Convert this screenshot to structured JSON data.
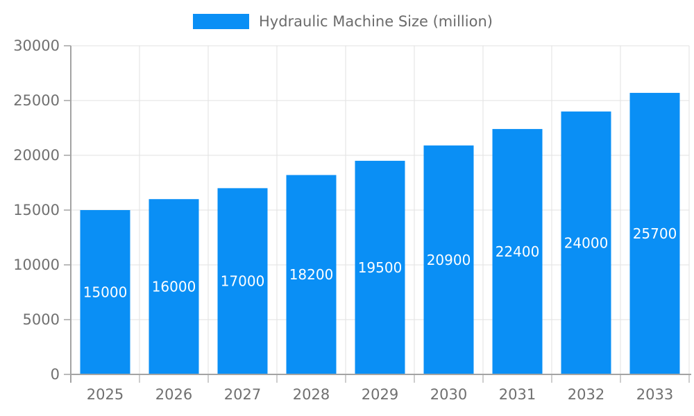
{
  "chart_data": {
    "type": "bar",
    "title": "",
    "legend": "Hydraulic Machine Size (million)",
    "categories": [
      "2025",
      "2026",
      "2027",
      "2028",
      "2029",
      "2030",
      "2031",
      "2032",
      "2033"
    ],
    "values": [
      15000,
      16000,
      17000,
      18200,
      19500,
      20900,
      22400,
      24000,
      25700
    ],
    "xlabel": "",
    "ylabel": "",
    "ylim": [
      0,
      30000
    ],
    "ytick_step": 5000,
    "yticks": [
      0,
      5000,
      10000,
      15000,
      20000,
      25000,
      30000
    ],
    "grid": true,
    "legend_position": "top-center",
    "bar_labels_inside": true,
    "colors": {
      "bar": "#0A8FF5",
      "bar_label": "#ffffff",
      "axis_line": "#a3a3a3",
      "grid_line": "#e2e2e2",
      "tick_line": "#bdbdbd",
      "axis_text": "#707070",
      "legend_text": "#6b6b6b",
      "background": "#ffffff"
    }
  }
}
